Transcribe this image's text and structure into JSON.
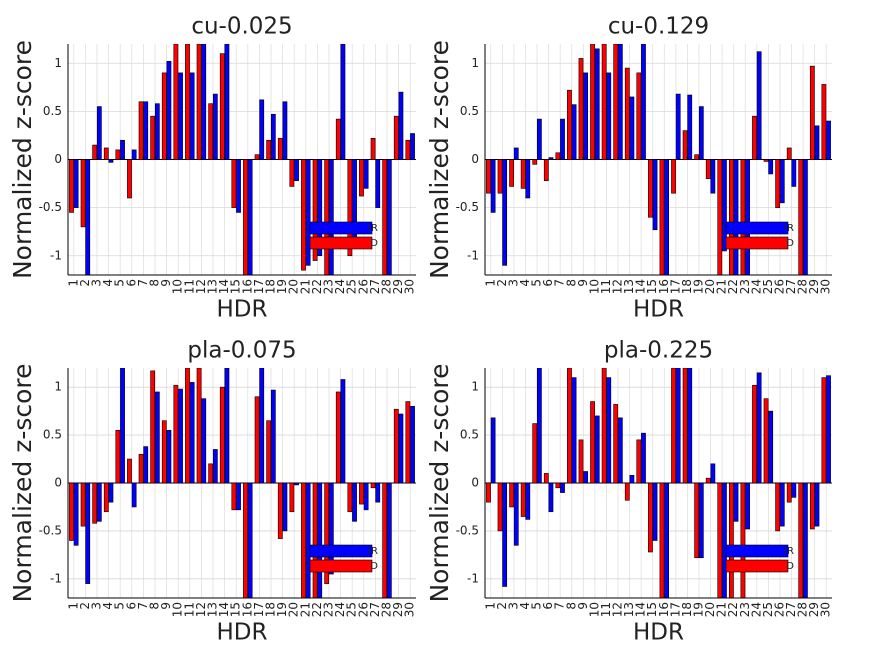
{
  "chart_data": [
    {
      "type": "bar",
      "title": "cu-0.025",
      "xlabel": "HDR",
      "ylabel": "Normalized z-score",
      "categories": [
        "1",
        "2",
        "3",
        "4",
        "5",
        "6",
        "7",
        "8",
        "9",
        "10",
        "11",
        "12",
        "13",
        "14",
        "15",
        "16",
        "17",
        "18",
        "19",
        "20",
        "21",
        "22",
        "23",
        "24",
        "25",
        "26",
        "27",
        "28",
        "29",
        "30"
      ],
      "series": [
        {
          "name": "IR",
          "color": "#0000ff",
          "values": [
            -0.5,
            -1.2,
            0.55,
            -0.03,
            0.2,
            0.1,
            0.6,
            0.58,
            1.02,
            0.9,
            0.9,
            1.2,
            0.68,
            1.2,
            -0.55,
            -1.2,
            0.62,
            0.47,
            0.6,
            -0.22,
            -1.1,
            -1.0,
            -1.2,
            1.2,
            -0.85,
            -0.3,
            -0.5,
            -1.2,
            0.7,
            0.27
          ]
        },
        {
          "name": "D",
          "color": "#ff0000",
          "values": [
            -0.55,
            -0.7,
            0.15,
            0.12,
            0.1,
            -0.4,
            0.6,
            0.45,
            0.9,
            1.2,
            1.2,
            1.2,
            0.58,
            1.1,
            -0.5,
            -1.2,
            0.05,
            0.2,
            0.22,
            -0.28,
            -1.15,
            -1.05,
            -1.2,
            0.42,
            -1.0,
            -0.38,
            0.22,
            -1.2,
            0.45,
            0.2
          ]
        }
      ],
      "ylim": [
        -1.2,
        1.2
      ],
      "yticks": [
        -1,
        -0.5,
        0,
        0.5,
        1
      ],
      "grid": true,
      "legend": "lower right"
    },
    {
      "type": "bar",
      "title": "cu-0.129",
      "xlabel": "HDR",
      "ylabel": "Normalized z-score",
      "categories": [
        "1",
        "2",
        "3",
        "4",
        "5",
        "6",
        "7",
        "8",
        "9",
        "10",
        "11",
        "12",
        "13",
        "14",
        "15",
        "16",
        "17",
        "18",
        "19",
        "20",
        "21",
        "22",
        "23",
        "24",
        "25",
        "26",
        "27",
        "28",
        "29",
        "30"
      ],
      "series": [
        {
          "name": "IR",
          "color": "#0000ff",
          "values": [
            -0.55,
            -1.1,
            0.12,
            -0.4,
            0.42,
            0.02,
            0.42,
            0.57,
            0.9,
            1.15,
            0.9,
            1.2,
            0.65,
            1.2,
            -0.73,
            -1.2,
            0.68,
            0.67,
            0.55,
            -0.35,
            -0.95,
            -1.2,
            -1.2,
            1.12,
            -0.15,
            -0.45,
            -0.28,
            -1.2,
            0.35,
            0.4
          ]
        },
        {
          "name": "D",
          "color": "#ff0000",
          "values": [
            -0.35,
            -0.35,
            -0.28,
            -0.3,
            -0.05,
            -0.22,
            0.07,
            0.72,
            1.05,
            1.2,
            1.2,
            1.2,
            0.95,
            0.9,
            -0.6,
            -1.2,
            -0.35,
            0.3,
            0.05,
            -0.2,
            -1.2,
            -1.2,
            -1.2,
            0.45,
            -0.02,
            -0.5,
            0.12,
            -1.2,
            0.97,
            0.78
          ]
        }
      ],
      "ylim": [
        -1.2,
        1.2
      ],
      "yticks": [
        -1,
        -0.5,
        0,
        0.5,
        1
      ],
      "grid": true,
      "legend": "lower right"
    },
    {
      "type": "bar",
      "title": "pla-0.075",
      "xlabel": "HDR",
      "ylabel": "Normalized z-score",
      "categories": [
        "1",
        "2",
        "3",
        "4",
        "5",
        "6",
        "7",
        "8",
        "9",
        "10",
        "11",
        "12",
        "13",
        "14",
        "15",
        "16",
        "17",
        "18",
        "19",
        "20",
        "21",
        "22",
        "23",
        "24",
        "25",
        "26",
        "27",
        "28",
        "29",
        "30"
      ],
      "series": [
        {
          "name": "IR",
          "color": "#0000ff",
          "values": [
            -0.65,
            -1.05,
            -0.4,
            -0.2,
            1.2,
            -0.25,
            0.38,
            0.95,
            0.55,
            0.98,
            1.05,
            0.88,
            0.35,
            1.2,
            -0.28,
            -1.2,
            1.2,
            0.97,
            -0.5,
            -0.02,
            -1.2,
            -1.2,
            -0.95,
            1.08,
            -0.4,
            -0.28,
            -0.2,
            -1.2,
            0.72,
            0.8
          ]
        },
        {
          "name": "D",
          "color": "#ff0000",
          "values": [
            -0.6,
            -0.45,
            -0.42,
            -0.3,
            0.55,
            0.25,
            0.3,
            1.17,
            0.65,
            1.02,
            1.2,
            1.2,
            0.2,
            1.0,
            -0.28,
            -1.2,
            0.9,
            0.65,
            -0.58,
            -0.3,
            -1.2,
            -1.2,
            -1.05,
            0.95,
            -0.3,
            -0.22,
            -0.05,
            -1.2,
            0.77,
            0.85
          ]
        }
      ],
      "ylim": [
        -1.2,
        1.2
      ],
      "yticks": [
        -1,
        -0.5,
        0,
        0.5,
        1
      ],
      "grid": true,
      "legend": "lower right"
    },
    {
      "type": "bar",
      "title": "pla-0.225",
      "xlabel": "HDR",
      "ylabel": "Normalized z-score",
      "categories": [
        "1",
        "2",
        "3",
        "4",
        "5",
        "6",
        "7",
        "8",
        "9",
        "10",
        "11",
        "12",
        "13",
        "14",
        "15",
        "16",
        "17",
        "18",
        "19",
        "20",
        "21",
        "22",
        "23",
        "24",
        "25",
        "26",
        "27",
        "28",
        "29",
        "30"
      ],
      "series": [
        {
          "name": "IR",
          "color": "#0000ff",
          "values": [
            0.68,
            -1.08,
            -0.65,
            -0.38,
            1.2,
            -0.3,
            -0.1,
            1.1,
            0.12,
            0.7,
            1.1,
            0.68,
            0.08,
            0.52,
            -0.6,
            -1.2,
            1.2,
            1.2,
            -0.78,
            0.2,
            -1.2,
            -0.4,
            -0.48,
            1.15,
            0.75,
            -0.45,
            -0.15,
            -1.2,
            -0.45,
            1.12
          ]
        },
        {
          "name": "D",
          "color": "#ff0000",
          "values": [
            -0.2,
            -0.5,
            -0.25,
            -0.35,
            0.62,
            0.1,
            -0.05,
            1.2,
            0.45,
            0.85,
            1.2,
            0.82,
            -0.18,
            0.45,
            -0.72,
            -1.2,
            1.2,
            1.2,
            -0.78,
            0.05,
            -1.2,
            -1.2,
            -1.2,
            1.02,
            0.88,
            -0.5,
            -0.2,
            -1.2,
            -0.48,
            1.1
          ]
        }
      ],
      "ylim": [
        -1.2,
        1.2
      ],
      "yticks": [
        -1,
        -0.5,
        0,
        0.5,
        1
      ],
      "grid": true,
      "legend": "lower right"
    }
  ]
}
